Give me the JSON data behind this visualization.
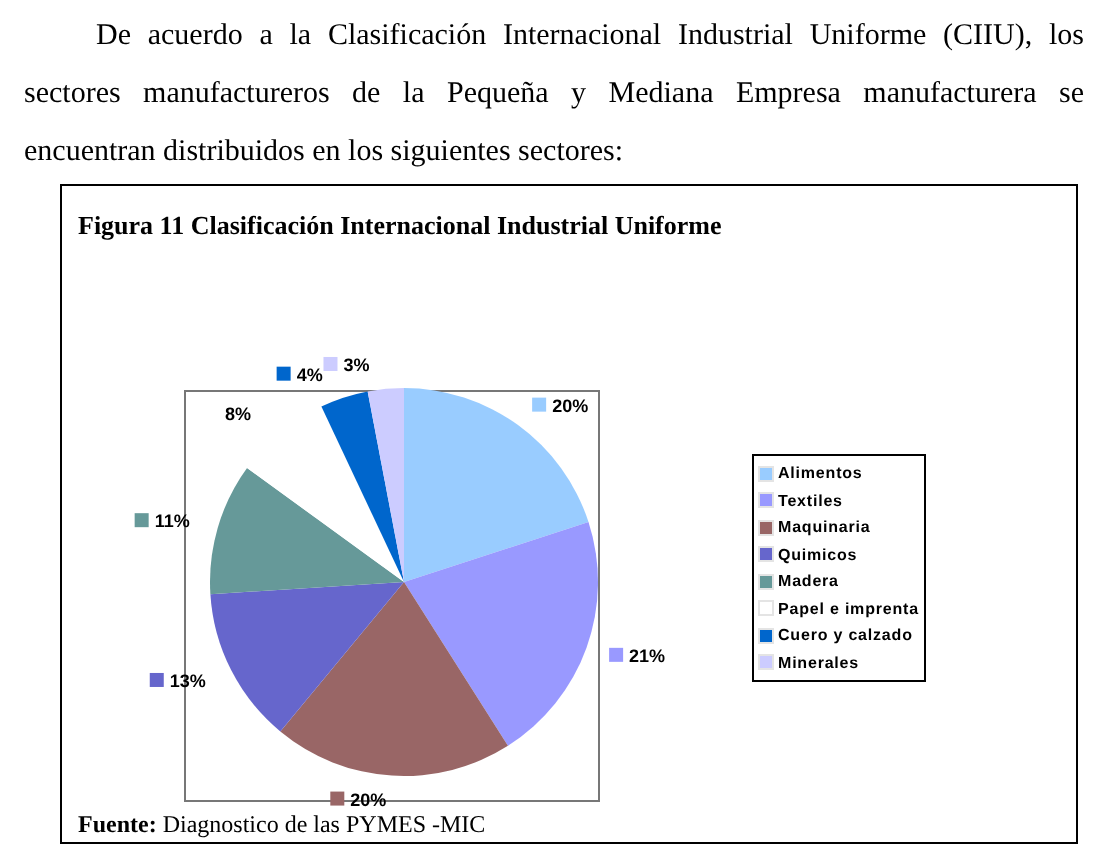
{
  "chart_data": {
    "type": "pie",
    "title": "Figura 11 Clasificación Internacional Industrial Uniforme",
    "categories": [
      "Alimentos",
      "Textiles",
      "Maquinaria",
      "Quimicos",
      "Madera",
      "Papel e imprenta",
      "Cuero y calzado",
      "Minerales"
    ],
    "values": [
      20,
      21,
      20,
      13,
      11,
      8,
      4,
      3
    ],
    "value_labels": [
      "20%",
      "21%",
      "20%",
      "13%",
      "11%",
      "8%",
      "4%",
      "3%"
    ],
    "colors": [
      "#99ccff",
      "#9999ff",
      "#996666",
      "#6666cc",
      "#669999",
      "#ffffff",
      "#0066cc",
      "#ccccff"
    ],
    "legend": "right",
    "annotations": [
      "De acuerdo a la Clasificación Internacional Industrial Uniforme (CIIU), los sectores manufactureros de la Pequeña y Mediana Empresa manufacturera se encuentran distribuidos en los siguientes sectores:",
      "Fuente: Diagnostico de las PYMES -MIC"
    ]
  }
}
